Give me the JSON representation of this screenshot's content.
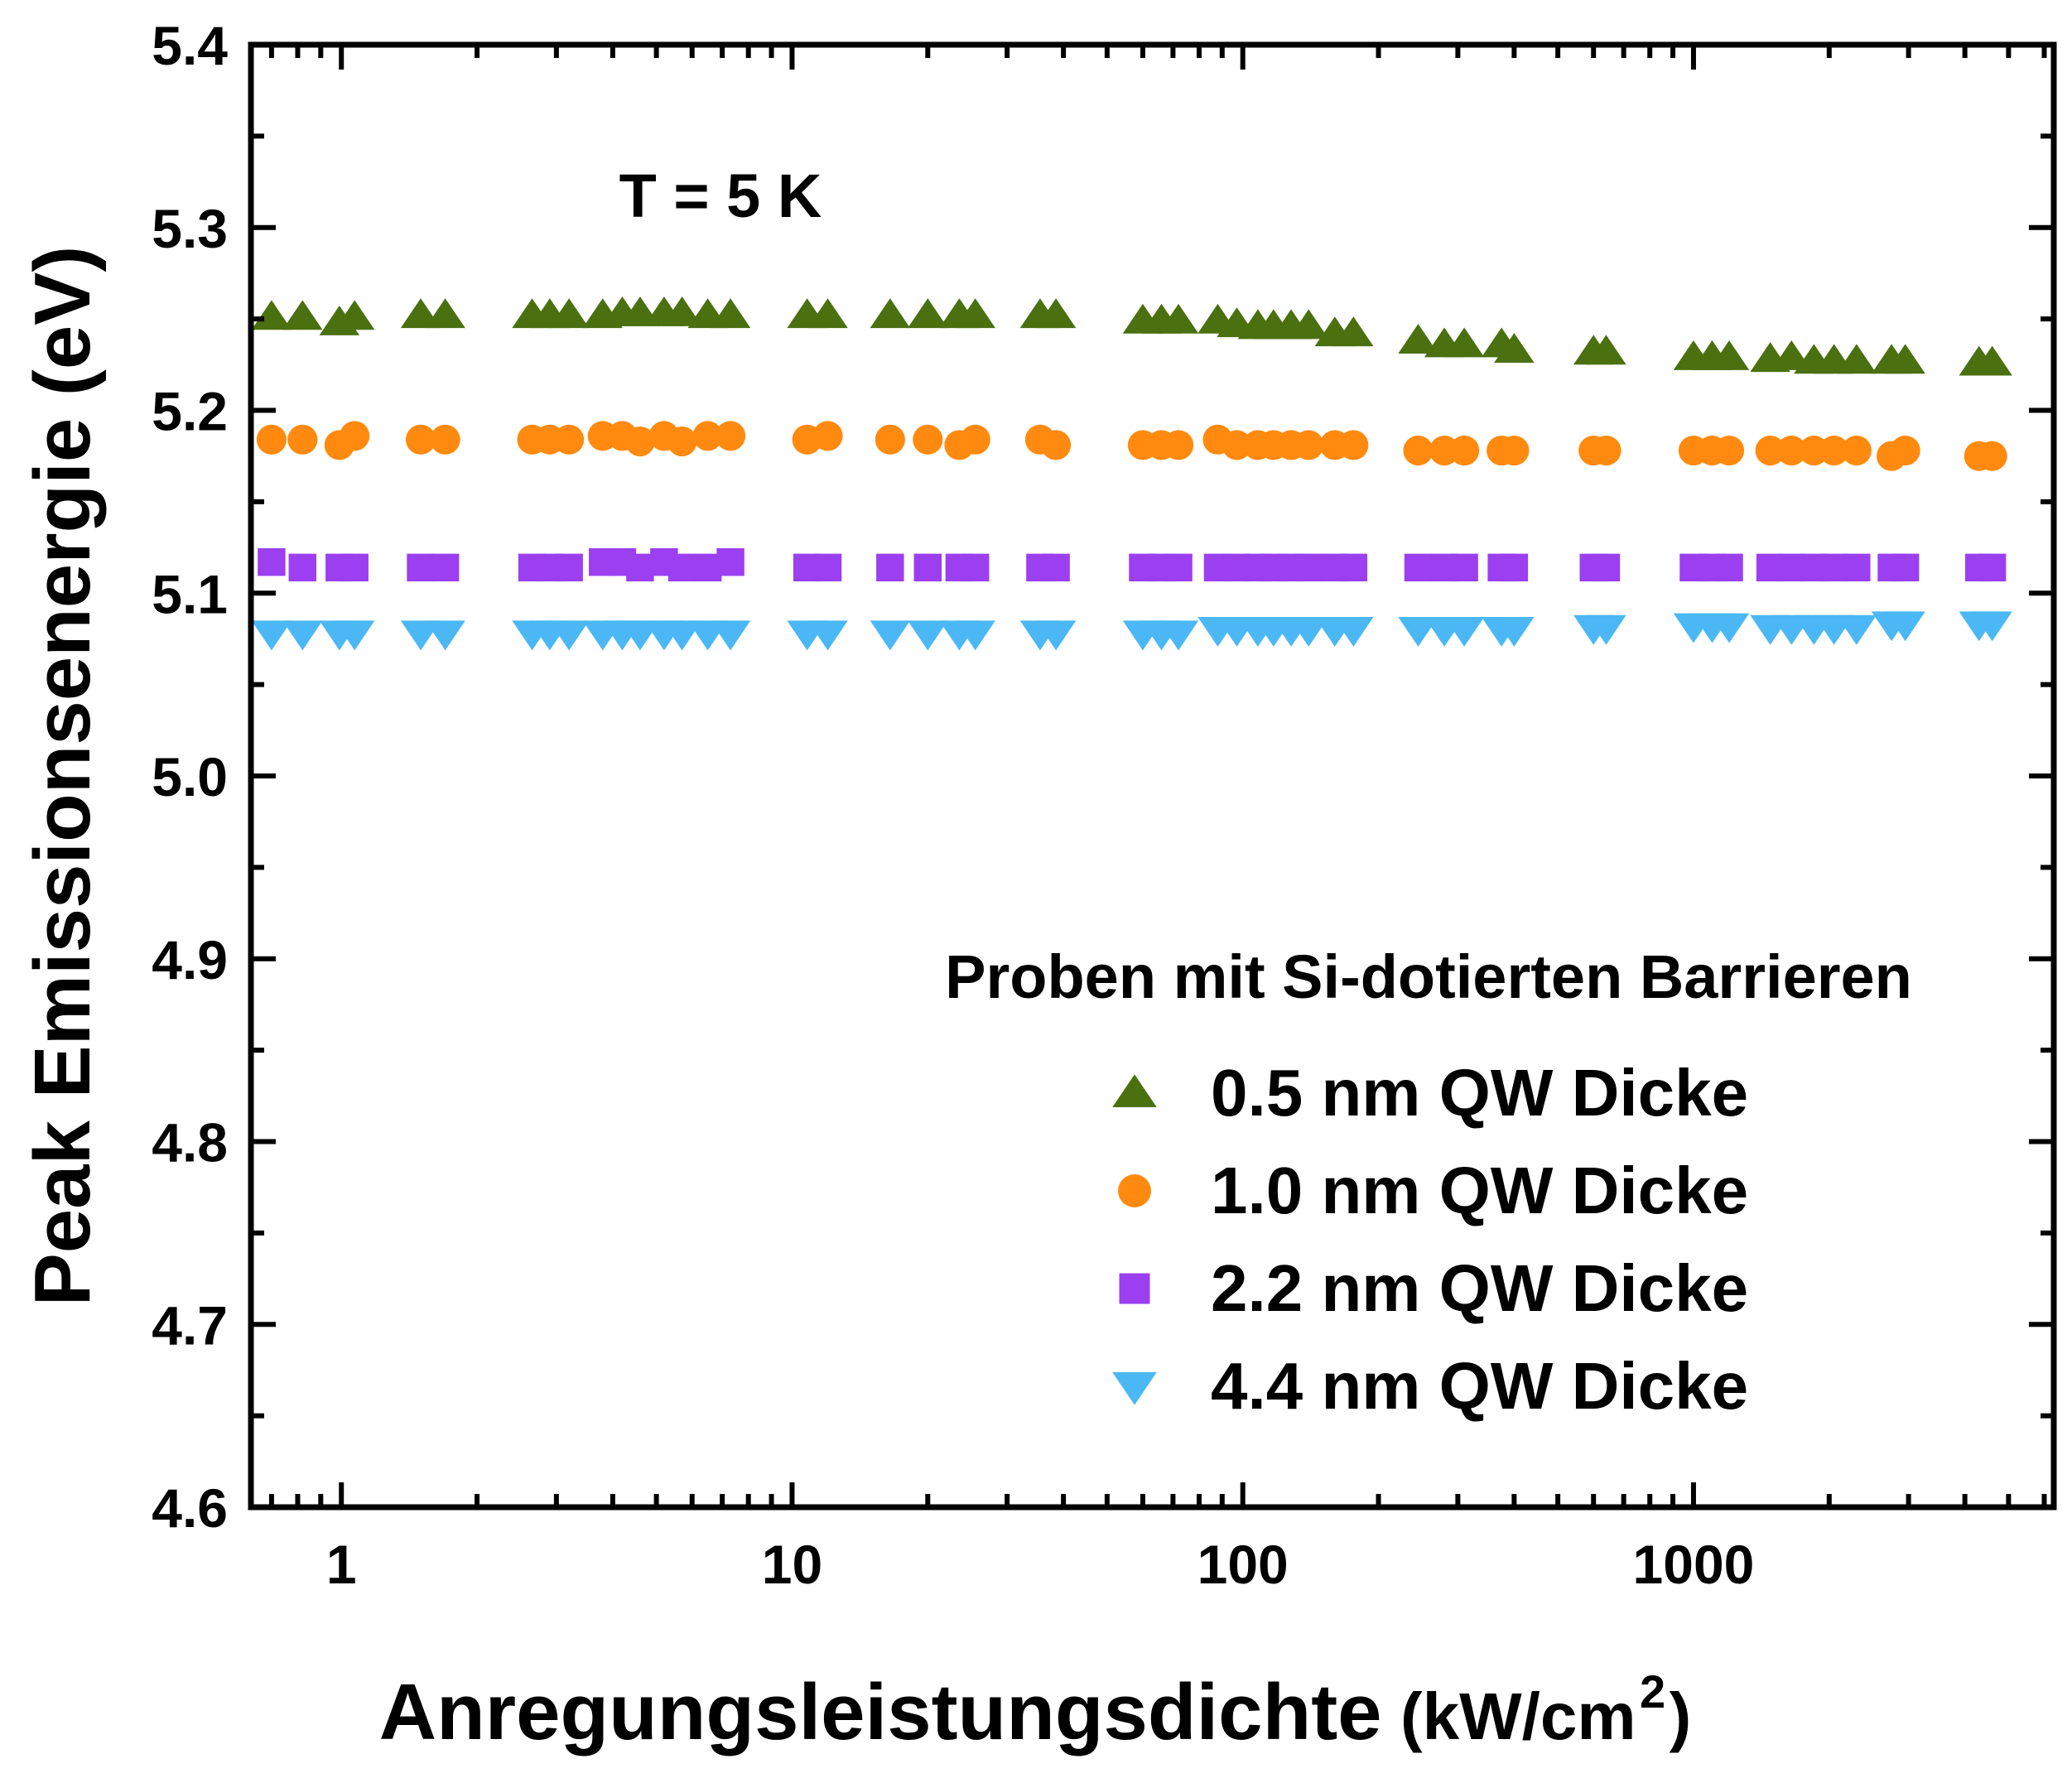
{
  "chart_data": {
    "type": "scatter",
    "title": "",
    "annotation": "T = 5 K",
    "xlabel_main": "Anregungsleistungsdichte",
    "xlabel_unit_prefix": "(kW/cm",
    "xlabel_unit_sup": "2",
    "xlabel_unit_suffix": ")",
    "ylabel": "Peak Emissionsenergie (eV)",
    "xscale": "log",
    "xlim": [
      0.63,
      6300
    ],
    "ylim": [
      4.6,
      5.4
    ],
    "x_ticks": [
      1,
      10,
      100,
      1000
    ],
    "x_tick_labels": [
      "1",
      "10",
      "100",
      "1000"
    ],
    "y_ticks": [
      4.6,
      4.7,
      4.8,
      4.9,
      5.0,
      5.1,
      5.2,
      5.3,
      5.4
    ],
    "y_tick_labels": [
      "4.6",
      "4.7",
      "4.8",
      "4.9",
      "5.0",
      "5.1",
      "5.2",
      "5.3",
      "5.4"
    ],
    "grid": false,
    "legend_title": "Proben mit Si-dotierten Barrieren",
    "legend_position": "bottom-right",
    "series": [
      {
        "name": "0.5 nm QW Dicke",
        "marker": "triangle-up",
        "color": "#4a7010",
        "points": [
          [
            0.7,
            5.251
          ],
          [
            0.82,
            5.251
          ],
          [
            0.99,
            5.248
          ],
          [
            1.07,
            5.251
          ],
          [
            1.5,
            5.252
          ],
          [
            1.7,
            5.252
          ],
          [
            2.65,
            5.252
          ],
          [
            2.9,
            5.252
          ],
          [
            3.2,
            5.252
          ],
          [
            3.8,
            5.252
          ],
          [
            4.2,
            5.253
          ],
          [
            4.6,
            5.253
          ],
          [
            5.2,
            5.253
          ],
          [
            5.7,
            5.253
          ],
          [
            6.5,
            5.252
          ],
          [
            7.3,
            5.252
          ],
          [
            10.8,
            5.252
          ],
          [
            12.0,
            5.252
          ],
          [
            16.5,
            5.252
          ],
          [
            20.0,
            5.252
          ],
          [
            23.5,
            5.252
          ],
          [
            25.5,
            5.252
          ],
          [
            35.5,
            5.252
          ],
          [
            38.5,
            5.252
          ],
          [
            60,
            5.249
          ],
          [
            66,
            5.249
          ],
          [
            72,
            5.249
          ],
          [
            88,
            5.249
          ],
          [
            97,
            5.247
          ],
          [
            108,
            5.246
          ],
          [
            117,
            5.246
          ],
          [
            128,
            5.246
          ],
          [
            140,
            5.246
          ],
          [
            160,
            5.242
          ],
          [
            176,
            5.242
          ],
          [
            245,
            5.238
          ],
          [
            280,
            5.236
          ],
          [
            310,
            5.236
          ],
          [
            375,
            5.236
          ],
          [
            400,
            5.233
          ],
          [
            600,
            5.232
          ],
          [
            640,
            5.232
          ],
          [
            1000,
            5.229
          ],
          [
            1100,
            5.229
          ],
          [
            1200,
            5.229
          ],
          [
            1480,
            5.228
          ],
          [
            1650,
            5.229
          ],
          [
            1850,
            5.227
          ],
          [
            2050,
            5.227
          ],
          [
            2300,
            5.227
          ],
          [
            2750,
            5.227
          ],
          [
            2950,
            5.227
          ],
          [
            4300,
            5.226
          ],
          [
            4600,
            5.226
          ]
        ]
      },
      {
        "name": "1.0 nm QW Dicke",
        "marker": "circle",
        "color": "#ff8a0f",
        "points": [
          [
            0.7,
            5.184
          ],
          [
            0.82,
            5.184
          ],
          [
            0.99,
            5.181
          ],
          [
            1.07,
            5.186
          ],
          [
            1.5,
            5.184
          ],
          [
            1.7,
            5.184
          ],
          [
            2.65,
            5.184
          ],
          [
            2.9,
            5.184
          ],
          [
            3.2,
            5.184
          ],
          [
            3.8,
            5.186
          ],
          [
            4.2,
            5.186
          ],
          [
            4.6,
            5.183
          ],
          [
            5.2,
            5.186
          ],
          [
            5.7,
            5.183
          ],
          [
            6.5,
            5.186
          ],
          [
            7.3,
            5.186
          ],
          [
            10.8,
            5.184
          ],
          [
            12.0,
            5.186
          ],
          [
            16.5,
            5.184
          ],
          [
            20.0,
            5.184
          ],
          [
            23.5,
            5.181
          ],
          [
            25.5,
            5.184
          ],
          [
            35.5,
            5.184
          ],
          [
            38.5,
            5.181
          ],
          [
            60,
            5.181
          ],
          [
            66,
            5.181
          ],
          [
            72,
            5.181
          ],
          [
            88,
            5.184
          ],
          [
            97,
            5.181
          ],
          [
            108,
            5.181
          ],
          [
            117,
            5.181
          ],
          [
            128,
            5.181
          ],
          [
            140,
            5.181
          ],
          [
            160,
            5.181
          ],
          [
            176,
            5.181
          ],
          [
            245,
            5.178
          ],
          [
            280,
            5.178
          ],
          [
            310,
            5.178
          ],
          [
            375,
            5.178
          ],
          [
            400,
            5.178
          ],
          [
            600,
            5.178
          ],
          [
            640,
            5.178
          ],
          [
            1000,
            5.178
          ],
          [
            1100,
            5.178
          ],
          [
            1200,
            5.178
          ],
          [
            1480,
            5.178
          ],
          [
            1650,
            5.178
          ],
          [
            1850,
            5.178
          ],
          [
            2050,
            5.178
          ],
          [
            2300,
            5.178
          ],
          [
            2750,
            5.175
          ],
          [
            2950,
            5.178
          ],
          [
            4300,
            5.175
          ],
          [
            4600,
            5.175
          ]
        ]
      },
      {
        "name": "2.2 nm QW Dicke",
        "marker": "square",
        "color": "#9b3ff0",
        "points": [
          [
            0.7,
            5.117
          ],
          [
            0.82,
            5.114
          ],
          [
            0.99,
            5.114
          ],
          [
            1.07,
            5.114
          ],
          [
            1.5,
            5.114
          ],
          [
            1.7,
            5.114
          ],
          [
            2.65,
            5.114
          ],
          [
            2.9,
            5.114
          ],
          [
            3.2,
            5.114
          ],
          [
            3.8,
            5.117
          ],
          [
            4.2,
            5.117
          ],
          [
            4.6,
            5.114
          ],
          [
            5.2,
            5.117
          ],
          [
            5.7,
            5.114
          ],
          [
            6.5,
            5.114
          ],
          [
            7.3,
            5.117
          ],
          [
            10.8,
            5.114
          ],
          [
            12.0,
            5.114
          ],
          [
            16.5,
            5.114
          ],
          [
            20.0,
            5.114
          ],
          [
            23.5,
            5.114
          ],
          [
            25.5,
            5.114
          ],
          [
            35.5,
            5.114
          ],
          [
            38.5,
            5.114
          ],
          [
            60,
            5.114
          ],
          [
            66,
            5.114
          ],
          [
            72,
            5.114
          ],
          [
            88,
            5.114
          ],
          [
            97,
            5.114
          ],
          [
            108,
            5.114
          ],
          [
            117,
            5.114
          ],
          [
            128,
            5.114
          ],
          [
            140,
            5.114
          ],
          [
            160,
            5.114
          ],
          [
            176,
            5.114
          ],
          [
            245,
            5.114
          ],
          [
            280,
            5.114
          ],
          [
            310,
            5.114
          ],
          [
            375,
            5.114
          ],
          [
            400,
            5.114
          ],
          [
            600,
            5.114
          ],
          [
            640,
            5.114
          ],
          [
            1000,
            5.114
          ],
          [
            1100,
            5.114
          ],
          [
            1200,
            5.114
          ],
          [
            1480,
            5.114
          ],
          [
            1650,
            5.114
          ],
          [
            1850,
            5.114
          ],
          [
            2050,
            5.114
          ],
          [
            2300,
            5.114
          ],
          [
            2750,
            5.114
          ],
          [
            2950,
            5.114
          ],
          [
            4300,
            5.114
          ],
          [
            4600,
            5.114
          ]
        ]
      },
      {
        "name": "4.4 nm QW Dicke",
        "marker": "triangle-down",
        "color": "#4bb8f5",
        "points": [
          [
            0.7,
            5.078
          ],
          [
            0.82,
            5.078
          ],
          [
            0.99,
            5.078
          ],
          [
            1.07,
            5.078
          ],
          [
            1.5,
            5.078
          ],
          [
            1.7,
            5.078
          ],
          [
            2.65,
            5.078
          ],
          [
            2.9,
            5.078
          ],
          [
            3.2,
            5.078
          ],
          [
            3.8,
            5.078
          ],
          [
            4.2,
            5.078
          ],
          [
            4.6,
            5.078
          ],
          [
            5.2,
            5.078
          ],
          [
            5.7,
            5.078
          ],
          [
            6.5,
            5.078
          ],
          [
            7.3,
            5.078
          ],
          [
            10.8,
            5.078
          ],
          [
            12.0,
            5.078
          ],
          [
            16.5,
            5.078
          ],
          [
            20.0,
            5.078
          ],
          [
            23.5,
            5.078
          ],
          [
            25.5,
            5.078
          ],
          [
            35.5,
            5.078
          ],
          [
            38.5,
            5.078
          ],
          [
            60,
            5.078
          ],
          [
            66,
            5.078
          ],
          [
            72,
            5.078
          ],
          [
            88,
            5.08
          ],
          [
            97,
            5.08
          ],
          [
            108,
            5.08
          ],
          [
            117,
            5.08
          ],
          [
            128,
            5.08
          ],
          [
            140,
            5.08
          ],
          [
            160,
            5.08
          ],
          [
            176,
            5.08
          ],
          [
            245,
            5.08
          ],
          [
            280,
            5.08
          ],
          [
            310,
            5.08
          ],
          [
            375,
            5.08
          ],
          [
            400,
            5.08
          ],
          [
            600,
            5.081
          ],
          [
            640,
            5.081
          ],
          [
            1000,
            5.082
          ],
          [
            1100,
            5.082
          ],
          [
            1200,
            5.082
          ],
          [
            1480,
            5.081
          ],
          [
            1650,
            5.081
          ],
          [
            1850,
            5.081
          ],
          [
            2050,
            5.081
          ],
          [
            2300,
            5.081
          ],
          [
            2750,
            5.083
          ],
          [
            2950,
            5.083
          ],
          [
            4300,
            5.083
          ],
          [
            4600,
            5.083
          ]
        ]
      }
    ]
  }
}
